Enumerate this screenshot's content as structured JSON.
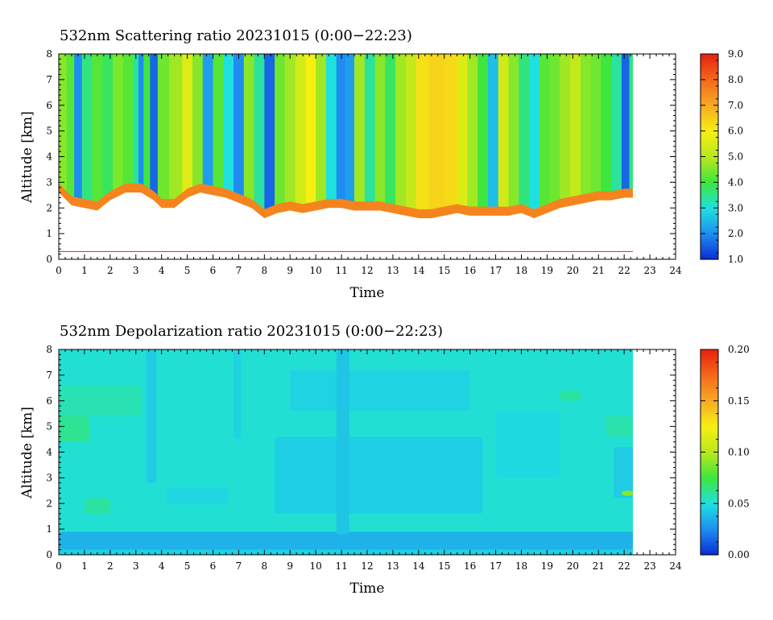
{
  "chart_data": [
    {
      "type": "heatmap",
      "title": "532nm Scattering ratio  20231015 (0:00−22:23)",
      "xlabel": "Time",
      "ylabel": "Altitude [km]",
      "xlim": [
        0,
        24
      ],
      "ylim": [
        0,
        8
      ],
      "xticks": [
        "0",
        "1",
        "2",
        "3",
        "4",
        "5",
        "6",
        "7",
        "8",
        "9",
        "10",
        "11",
        "12",
        "13",
        "14",
        "15",
        "16",
        "17",
        "18",
        "19",
        "20",
        "21",
        "22",
        "23",
        "24"
      ],
      "yticks": [
        "0",
        "1",
        "2",
        "3",
        "4",
        "5",
        "6",
        "7",
        "8"
      ],
      "data_end_time": 22.38,
      "colorbar": {
        "range": [
          1.0,
          9.0
        ],
        "ticks": [
          "1.0",
          "2.0",
          "3.0",
          "4.0",
          "5.0",
          "6.0",
          "7.0",
          "8.0",
          "9.0"
        ]
      },
      "colormap": [
        "#0a2bd6",
        "#1f8df0",
        "#1fe0e0",
        "#3ee63e",
        "#b8e81c",
        "#f6ef12",
        "#f8aa24",
        "#f46a1a",
        "#e8200e"
      ],
      "column_values": [
        {
          "t": 0.0,
          "v": 4.6
        },
        {
          "t": 0.3,
          "v": 4.2
        },
        {
          "t": 0.6,
          "v": 2.0
        },
        {
          "t": 0.9,
          "v": 3.6
        },
        {
          "t": 1.3,
          "v": 4.2
        },
        {
          "t": 1.7,
          "v": 3.8
        },
        {
          "t": 2.1,
          "v": 4.5
        },
        {
          "t": 2.5,
          "v": 4.2
        },
        {
          "t": 2.9,
          "v": 3.4
        },
        {
          "t": 3.1,
          "v": 2.0
        },
        {
          "t": 3.3,
          "v": 4.0
        },
        {
          "t": 3.55,
          "v": 1.6
        },
        {
          "t": 3.85,
          "v": 4.4
        },
        {
          "t": 4.3,
          "v": 4.8
        },
        {
          "t": 4.8,
          "v": 5.6
        },
        {
          "t": 5.2,
          "v": 4.6
        },
        {
          "t": 5.6,
          "v": 2.2
        },
        {
          "t": 6.0,
          "v": 4.2
        },
        {
          "t": 6.4,
          "v": 3.0
        },
        {
          "t": 6.8,
          "v": 2.0
        },
        {
          "t": 7.2,
          "v": 4.6
        },
        {
          "t": 7.6,
          "v": 3.4
        },
        {
          "t": 8.0,
          "v": 1.6
        },
        {
          "t": 8.4,
          "v": 4.4
        },
        {
          "t": 8.8,
          "v": 4.8
        },
        {
          "t": 9.2,
          "v": 5.4
        },
        {
          "t": 9.6,
          "v": 6.0
        },
        {
          "t": 10.0,
          "v": 4.8
        },
        {
          "t": 10.4,
          "v": 3.0
        },
        {
          "t": 10.8,
          "v": 2.0
        },
        {
          "t": 11.15,
          "v": 2.2
        },
        {
          "t": 11.5,
          "v": 4.8
        },
        {
          "t": 11.9,
          "v": 3.4
        },
        {
          "t": 12.3,
          "v": 4.6
        },
        {
          "t": 12.7,
          "v": 3.8
        },
        {
          "t": 13.1,
          "v": 4.8
        },
        {
          "t": 13.5,
          "v": 5.2
        },
        {
          "t": 13.9,
          "v": 6.2
        },
        {
          "t": 14.4,
          "v": 6.4
        },
        {
          "t": 15.0,
          "v": 6.3
        },
        {
          "t": 15.5,
          "v": 5.6
        },
        {
          "t": 15.9,
          "v": 4.8
        },
        {
          "t": 16.3,
          "v": 4.0
        },
        {
          "t": 16.7,
          "v": 2.6
        },
        {
          "t": 17.1,
          "v": 5.4
        },
        {
          "t": 17.5,
          "v": 4.6
        },
        {
          "t": 17.9,
          "v": 3.6
        },
        {
          "t": 18.3,
          "v": 3.0
        },
        {
          "t": 18.7,
          "v": 4.2
        },
        {
          "t": 19.1,
          "v": 4.4
        },
        {
          "t": 19.5,
          "v": 4.8
        },
        {
          "t": 19.9,
          "v": 5.2
        },
        {
          "t": 20.3,
          "v": 4.6
        },
        {
          "t": 20.7,
          "v": 4.4
        },
        {
          "t": 21.1,
          "v": 4.0
        },
        {
          "t": 21.5,
          "v": 3.4
        },
        {
          "t": 21.9,
          "v": 1.6
        },
        {
          "t": 22.2,
          "v": 3.6
        }
      ],
      "cloud_base_km": [
        {
          "t": 0.0,
          "h": 2.6
        },
        {
          "t": 0.5,
          "h": 2.1
        },
        {
          "t": 1.0,
          "h": 2.0
        },
        {
          "t": 1.5,
          "h": 1.9
        },
        {
          "t": 2.0,
          "h": 2.3
        },
        {
          "t": 2.6,
          "h": 2.6
        },
        {
          "t": 3.2,
          "h": 2.6
        },
        {
          "t": 3.7,
          "h": 2.3
        },
        {
          "t": 4.0,
          "h": 2.0
        },
        {
          "t": 4.5,
          "h": 2.0
        },
        {
          "t": 5.0,
          "h": 2.4
        },
        {
          "t": 5.5,
          "h": 2.6
        },
        {
          "t": 6.0,
          "h": 2.5
        },
        {
          "t": 6.5,
          "h": 2.4
        },
        {
          "t": 7.0,
          "h": 2.2
        },
        {
          "t": 7.5,
          "h": 2.0
        },
        {
          "t": 8.0,
          "h": 1.6
        },
        {
          "t": 8.5,
          "h": 1.8
        },
        {
          "t": 9.0,
          "h": 1.9
        },
        {
          "t": 9.5,
          "h": 1.8
        },
        {
          "t": 10.0,
          "h": 1.9
        },
        {
          "t": 10.5,
          "h": 2.0
        },
        {
          "t": 11.0,
          "h": 2.0
        },
        {
          "t": 11.5,
          "h": 1.9
        },
        {
          "t": 12.0,
          "h": 1.9
        },
        {
          "t": 12.5,
          "h": 1.9
        },
        {
          "t": 13.0,
          "h": 1.8
        },
        {
          "t": 13.5,
          "h": 1.7
        },
        {
          "t": 14.0,
          "h": 1.6
        },
        {
          "t": 14.5,
          "h": 1.6
        },
        {
          "t": 15.0,
          "h": 1.7
        },
        {
          "t": 15.5,
          "h": 1.8
        },
        {
          "t": 16.0,
          "h": 1.7
        },
        {
          "t": 16.5,
          "h": 1.7
        },
        {
          "t": 17.0,
          "h": 1.7
        },
        {
          "t": 17.5,
          "h": 1.7
        },
        {
          "t": 18.0,
          "h": 1.8
        },
        {
          "t": 18.5,
          "h": 1.6
        },
        {
          "t": 19.0,
          "h": 1.8
        },
        {
          "t": 19.5,
          "h": 2.0
        },
        {
          "t": 20.0,
          "h": 2.1
        },
        {
          "t": 20.5,
          "h": 2.2
        },
        {
          "t": 21.0,
          "h": 2.3
        },
        {
          "t": 21.5,
          "h": 2.3
        },
        {
          "t": 22.0,
          "h": 2.4
        },
        {
          "t": 22.38,
          "h": 2.4
        }
      ],
      "reference_line_km": 0.3
    },
    {
      "type": "heatmap",
      "title": "532nm Depolarization ratio  20231015 (0:00−22:23)",
      "xlabel": "Time",
      "ylabel": "Altitude [km]",
      "xlim": [
        0,
        24
      ],
      "ylim": [
        0,
        8
      ],
      "xticks": [
        "0",
        "1",
        "2",
        "3",
        "4",
        "5",
        "6",
        "7",
        "8",
        "9",
        "10",
        "11",
        "12",
        "13",
        "14",
        "15",
        "16",
        "17",
        "18",
        "19",
        "20",
        "21",
        "22",
        "23",
        "24"
      ],
      "yticks": [
        "0",
        "1",
        "2",
        "3",
        "4",
        "5",
        "6",
        "7",
        "8"
      ],
      "data_end_time": 22.38,
      "colorbar": {
        "range": [
          0.0,
          0.2
        ],
        "ticks": [
          "0.00",
          "0.05",
          "0.10",
          "0.15",
          "0.20"
        ]
      },
      "colormap": [
        "#0a2bd6",
        "#1f8df0",
        "#1fe0e0",
        "#3ee63e",
        "#b8e81c",
        "#f6ef12",
        "#f8aa24",
        "#f46a1a",
        "#e8200e"
      ],
      "background_value": 0.052,
      "regions": [
        {
          "t0": 0.0,
          "t1": 22.38,
          "h0": 0.2,
          "h1": 0.9,
          "v": 0.036
        },
        {
          "t0": 0.0,
          "t1": 22.38,
          "h0": 0.0,
          "h1": 0.2,
          "v": 0.045
        },
        {
          "t0": 0.0,
          "t1": 1.2,
          "h0": 4.4,
          "h1": 5.4,
          "v": 0.062
        },
        {
          "t0": 0.0,
          "t1": 3.2,
          "h0": 5.4,
          "h1": 6.6,
          "v": 0.057
        },
        {
          "t0": 3.4,
          "t1": 3.8,
          "h0": 2.8,
          "h1": 8.0,
          "v": 0.044
        },
        {
          "t0": 6.8,
          "t1": 7.1,
          "h0": 4.5,
          "h1": 8.0,
          "v": 0.046
        },
        {
          "t0": 8.4,
          "t1": 16.5,
          "h0": 1.6,
          "h1": 4.6,
          "v": 0.045
        },
        {
          "t0": 9.0,
          "t1": 16.0,
          "h0": 5.6,
          "h1": 7.2,
          "v": 0.046
        },
        {
          "t0": 10.8,
          "t1": 11.3,
          "h0": 0.8,
          "h1": 8.0,
          "v": 0.042
        },
        {
          "t0": 1.0,
          "t1": 2.0,
          "h0": 1.6,
          "h1": 2.2,
          "v": 0.06
        },
        {
          "t0": 21.3,
          "t1": 22.38,
          "h0": 4.6,
          "h1": 5.4,
          "v": 0.058
        },
        {
          "t0": 21.6,
          "t1": 22.38,
          "h0": 2.2,
          "h1": 4.2,
          "v": 0.044
        },
        {
          "t0": 21.9,
          "t1": 22.38,
          "h0": 2.3,
          "h1": 2.5,
          "v": 0.09
        },
        {
          "t0": 4.2,
          "t1": 6.6,
          "h0": 2.0,
          "h1": 2.6,
          "v": 0.047
        },
        {
          "t0": 17.0,
          "t1": 19.5,
          "h0": 3.0,
          "h1": 5.6,
          "v": 0.048
        },
        {
          "t0": 19.5,
          "t1": 20.3,
          "h0": 6.0,
          "h1": 6.4,
          "v": 0.06
        }
      ]
    }
  ]
}
